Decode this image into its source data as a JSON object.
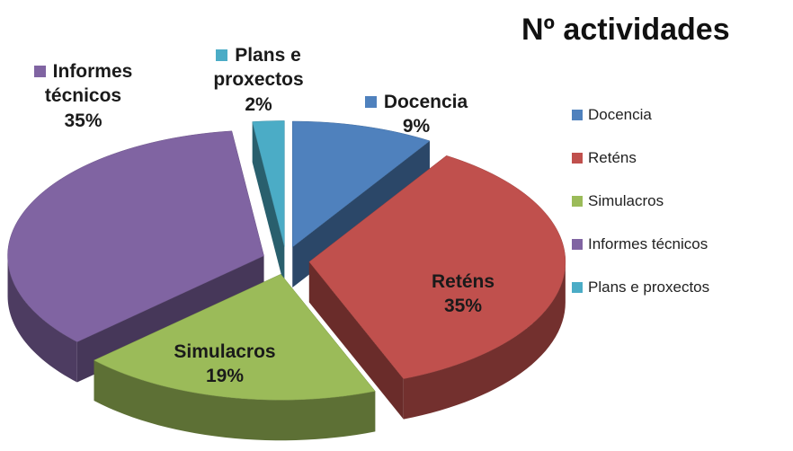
{
  "chart_data": {
    "type": "pie3d",
    "title": "Nº actividades",
    "categories": [
      "Docencia",
      "Reténs",
      "Simulacros",
      "Informes técnicos",
      "Plans e proxectos"
    ],
    "values": [
      9,
      35,
      19,
      35,
      2
    ],
    "value_labels": [
      "9%",
      "35%",
      "19%",
      "35%",
      "2%"
    ],
    "colors": [
      "#4f81bd",
      "#c0504d",
      "#9bbb59",
      "#8064a2",
      "#4bacc6"
    ],
    "legend": "right"
  }
}
